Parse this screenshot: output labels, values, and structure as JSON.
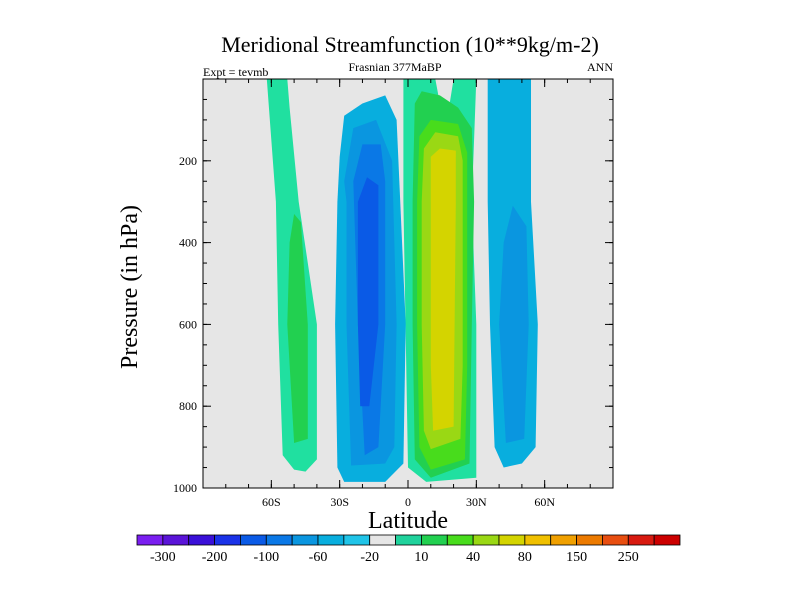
{
  "chart_data": {
    "type": "heatmap",
    "subtype": "filled-contour",
    "title": "Meridional Streamfunction (10**9kg/m-2)",
    "left_string": "Expt = tevmb",
    "center_string": "Frasnian 377MaBP",
    "right_string": "ANN",
    "xlabel": "Latitude",
    "ylabel": "Pressure (in hPa)",
    "xlim": [
      -90,
      90
    ],
    "ylim": [
      1000,
      0
    ],
    "x_ticks": [
      {
        "value": -60,
        "label": "60S"
      },
      {
        "value": -30,
        "label": "30S"
      },
      {
        "value": 0,
        "label": "0"
      },
      {
        "value": 30,
        "label": "30N"
      },
      {
        "value": 60,
        "label": "60N"
      }
    ],
    "y_ticks": [
      {
        "value": 200,
        "label": "200"
      },
      {
        "value": 400,
        "label": "400"
      },
      {
        "value": 600,
        "label": "600"
      },
      {
        "value": 800,
        "label": "800"
      },
      {
        "value": 1000,
        "label": "1000"
      }
    ],
    "background_value_color": "#e6e6e6",
    "colorbar": {
      "levels": [
        -300,
        -250,
        -200,
        -150,
        -100,
        -80,
        -60,
        -40,
        -20,
        -10,
        10,
        20,
        40,
        60,
        80,
        100,
        150,
        200,
        250,
        300
      ],
      "shown_labels": [
        "-300",
        "-200",
        "-100",
        "-60",
        "-20",
        "10",
        "40",
        "80",
        "150",
        "250"
      ],
      "colors": [
        "#7a1ef0",
        "#5a14d8",
        "#3a10d8",
        "#1a32e8",
        "#0a5ae6",
        "#0a78e6",
        "#0a96e0",
        "#08aede",
        "#20c4e8",
        "#e6e6e6",
        "#20d29c",
        "#22d050",
        "#48dc1c",
        "#9ad814",
        "#d4d400",
        "#f0c000",
        "#f0a000",
        "#ec7a00",
        "#e84e10",
        "#d81a10",
        "#cc0000"
      ]
    },
    "regions": [
      {
        "name": "NH upper cyan band",
        "color": "#20e0a0",
        "outline": [
          [
            -2,
            0
          ],
          [
            -2,
            300
          ],
          [
            0,
            950
          ],
          [
            8,
            985
          ],
          [
            30,
            975
          ],
          [
            30,
            600
          ],
          [
            28,
            300
          ],
          [
            30,
            0
          ],
          [
            20,
            0
          ],
          [
            18,
            70
          ],
          [
            14,
            60
          ],
          [
            12,
            0
          ]
        ]
      },
      {
        "name": "NH outer green",
        "color": "#22d050",
        "outline": [
          [
            3,
            60
          ],
          [
            6,
            30
          ],
          [
            14,
            40
          ],
          [
            22,
            70
          ],
          [
            28,
            120
          ],
          [
            29,
            300
          ],
          [
            28,
            600
          ],
          [
            27,
            940
          ],
          [
            10,
            975
          ],
          [
            3,
            930
          ],
          [
            2,
            600
          ],
          [
            2,
            300
          ]
        ]
      },
      {
        "name": "NH mid green",
        "color": "#48dc1c",
        "outline": [
          [
            5,
            140
          ],
          [
            10,
            100
          ],
          [
            22,
            110
          ],
          [
            26,
            180
          ],
          [
            26,
            700
          ],
          [
            25,
            930
          ],
          [
            10,
            955
          ],
          [
            5,
            900
          ],
          [
            4,
            600
          ],
          [
            4,
            300
          ]
        ]
      },
      {
        "name": "NH yellow-green",
        "color": "#9ad814",
        "outline": [
          [
            7,
            170
          ],
          [
            12,
            130
          ],
          [
            22,
            140
          ],
          [
            24,
            200
          ],
          [
            24,
            700
          ],
          [
            23,
            880
          ],
          [
            10,
            905
          ],
          [
            7,
            860
          ],
          [
            6,
            600
          ],
          [
            6,
            300
          ]
        ]
      },
      {
        "name": "NH core",
        "color": "#d4d400",
        "outline": [
          [
            10,
            190
          ],
          [
            14,
            170
          ],
          [
            21,
            175
          ],
          [
            21,
            300
          ],
          [
            20,
            850
          ],
          [
            11,
            860
          ],
          [
            10,
            700
          ]
        ]
      },
      {
        "name": "SH cyan band",
        "color": "#08aede",
        "outline": [
          [
            -30,
            190
          ],
          [
            -28,
            90
          ],
          [
            -20,
            60
          ],
          [
            -10,
            40
          ],
          [
            -5,
            100
          ],
          [
            -1,
            600
          ],
          [
            -2,
            940
          ],
          [
            -10,
            985
          ],
          [
            -28,
            985
          ],
          [
            -31,
            950
          ],
          [
            -32,
            600
          ],
          [
            -31,
            300
          ]
        ]
      },
      {
        "name": "SH blue band",
        "color": "#0a96e0",
        "outline": [
          [
            -28,
            250
          ],
          [
            -24,
            120
          ],
          [
            -14,
            100
          ],
          [
            -7,
            200
          ],
          [
            -5,
            600
          ],
          [
            -6,
            900
          ],
          [
            -10,
            940
          ],
          [
            -25,
            945
          ],
          [
            -27,
            600
          ],
          [
            -27,
            300
          ]
        ]
      },
      {
        "name": "SH dark blue band",
        "color": "#0a78e6",
        "outline": [
          [
            -24,
            250
          ],
          [
            -20,
            160
          ],
          [
            -12,
            160
          ],
          [
            -10,
            250
          ],
          [
            -10,
            600
          ],
          [
            -13,
            900
          ],
          [
            -19,
            920
          ],
          [
            -22,
            600
          ]
        ]
      },
      {
        "name": "SH core blue",
        "color": "#0a5ae6",
        "outline": [
          [
            -22,
            300
          ],
          [
            -18,
            240
          ],
          [
            -13,
            260
          ],
          [
            -13,
            600
          ],
          [
            -17,
            800
          ],
          [
            -21,
            800
          ],
          [
            -22,
            600
          ]
        ]
      },
      {
        "name": "SH outer green band",
        "color": "#20e0a0",
        "outline": [
          [
            -62,
            0
          ],
          [
            -53,
            0
          ],
          [
            -52,
            70
          ],
          [
            -48,
            300
          ],
          [
            -40,
            600
          ],
          [
            -40,
            930
          ],
          [
            -45,
            960
          ],
          [
            -50,
            955
          ],
          [
            -55,
            920
          ],
          [
            -57,
            600
          ],
          [
            -58,
            300
          ]
        ]
      },
      {
        "name": "SH green band core",
        "color": "#22d050",
        "outline": [
          [
            -52,
            400
          ],
          [
            -50,
            330
          ],
          [
            -47,
            350
          ],
          [
            -44,
            600
          ],
          [
            -44,
            880
          ],
          [
            -50,
            890
          ],
          [
            -53,
            600
          ]
        ]
      },
      {
        "name": "NH outer cyan band",
        "color": "#08aede",
        "outline": [
          [
            35,
            0
          ],
          [
            54,
            0
          ],
          [
            54,
            300
          ],
          [
            57,
            600
          ],
          [
            56,
            900
          ],
          [
            50,
            940
          ],
          [
            42,
            950
          ],
          [
            38,
            900
          ],
          [
            36,
            600
          ],
          [
            35,
            300
          ]
        ]
      },
      {
        "name": "NH outer blue band",
        "color": "#0a96e0",
        "outline": [
          [
            46,
            310
          ],
          [
            52,
            360
          ],
          [
            53,
            600
          ],
          [
            51,
            880
          ],
          [
            43,
            890
          ],
          [
            40,
            600
          ],
          [
            42,
            400
          ]
        ]
      }
    ]
  }
}
